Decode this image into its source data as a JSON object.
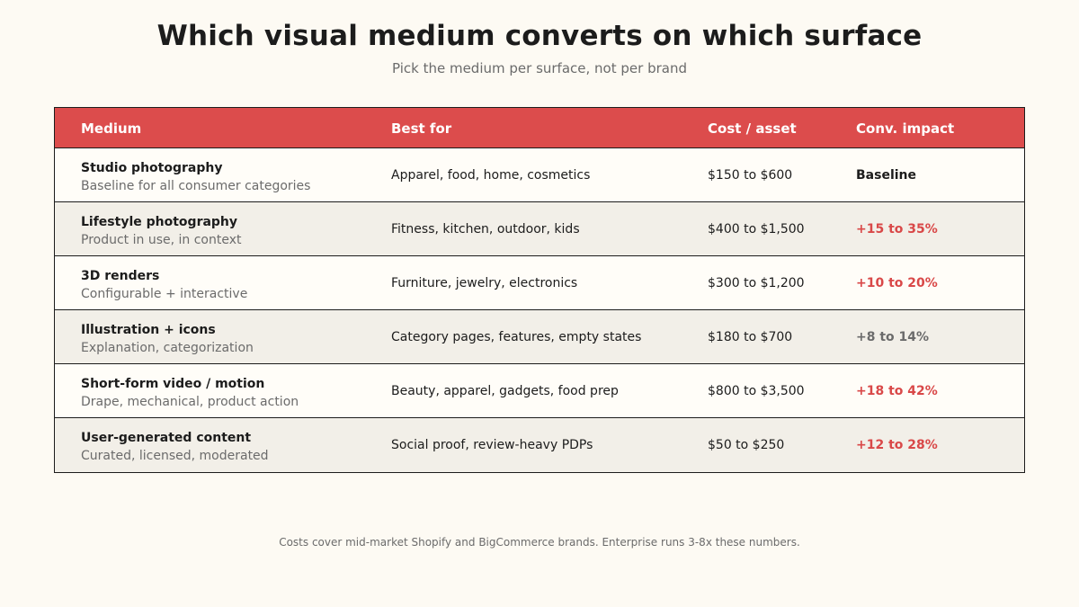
{
  "title": "Which visual medium converts on which surface",
  "subtitle": "Pick the medium per surface, not per brand",
  "table": {
    "headers": {
      "medium": "Medium",
      "best_for": "Best for",
      "cost": "Cost / asset",
      "impact": "Conv. impact"
    },
    "rows": [
      {
        "name": "Studio photography",
        "desc": "Baseline for all consumer categories",
        "best_for": "Apparel, food, home, cosmetics",
        "cost": "$150 to $600",
        "impact": "Baseline",
        "impact_style": "baseline"
      },
      {
        "name": "Lifestyle photography",
        "desc": "Product in use, in context",
        "best_for": "Fitness, kitchen, outdoor, kids",
        "cost": "$400 to $1,500",
        "impact": "+15 to 35%",
        "impact_style": "red"
      },
      {
        "name": "3D renders",
        "desc": "Configurable + interactive",
        "best_for": "Furniture, jewelry, electronics",
        "cost": "$300 to $1,200",
        "impact": "+10 to 20%",
        "impact_style": "red"
      },
      {
        "name": "Illustration + icons",
        "desc": "Explanation, categorization",
        "best_for": "Category pages, features, empty states",
        "cost": "$180 to $700",
        "impact": "+8 to 14%",
        "impact_style": "gray"
      },
      {
        "name": "Short-form video / motion",
        "desc": "Drape, mechanical, product action",
        "best_for": "Beauty, apparel, gadgets, food prep",
        "cost": "$800 to $3,500",
        "impact": "+18 to 42%",
        "impact_style": "red"
      },
      {
        "name": "User-generated content",
        "desc": "Curated, licensed, moderated",
        "best_for": "Social proof, review-heavy PDPs",
        "cost": "$50 to $250",
        "impact": "+12 to 28%",
        "impact_style": "red"
      }
    ]
  },
  "footnote": "Costs cover mid-market Shopify and BigCommerce brands. Enterprise runs 3-8x these numbers.",
  "colors": {
    "background": "#fdfaf3",
    "header": "#dc4c4c",
    "accent_red": "#d94848",
    "muted": "#6b6b6b",
    "alt_row": "#f2efe8"
  }
}
